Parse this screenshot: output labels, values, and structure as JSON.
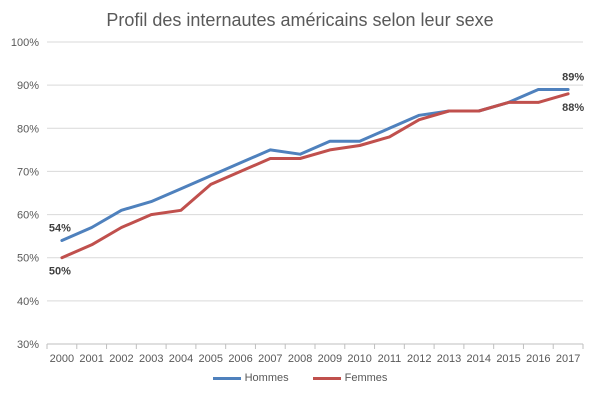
{
  "chart_data": {
    "type": "line",
    "title": "Profil des internautes américains selon leur sexe",
    "xlabel": "",
    "ylabel": "",
    "categories": [
      "2000",
      "2001",
      "2002",
      "2003",
      "2004",
      "2005",
      "2006",
      "2007",
      "2008",
      "2009",
      "2010",
      "2011",
      "2012",
      "2013",
      "2014",
      "2015",
      "2016",
      "2017"
    ],
    "yticks": [
      "30%",
      "40%",
      "50%",
      "60%",
      "70%",
      "80%",
      "90%",
      "100%"
    ],
    "ylim": [
      30,
      100
    ],
    "grid": true,
    "legend_position": "bottom",
    "series": [
      {
        "name": "Hommes",
        "color": "#4F81BD",
        "values": [
          54,
          57,
          61,
          63,
          66,
          69,
          72,
          75,
          74,
          77,
          77,
          80,
          83,
          84,
          84,
          86,
          89,
          89
        ],
        "labels": [
          {
            "index": 0,
            "text": "54%",
            "position": "above"
          },
          {
            "index": 17,
            "text": "89%",
            "position": "above"
          }
        ]
      },
      {
        "name": "Femmes",
        "color": "#C0504D",
        "values": [
          50,
          53,
          57,
          60,
          61,
          67,
          70,
          73,
          73,
          75,
          76,
          78,
          82,
          84,
          84,
          86,
          86,
          88
        ],
        "labels": [
          {
            "index": 0,
            "text": "50%",
            "position": "below"
          },
          {
            "index": 17,
            "text": "88%",
            "position": "below"
          }
        ]
      }
    ]
  }
}
